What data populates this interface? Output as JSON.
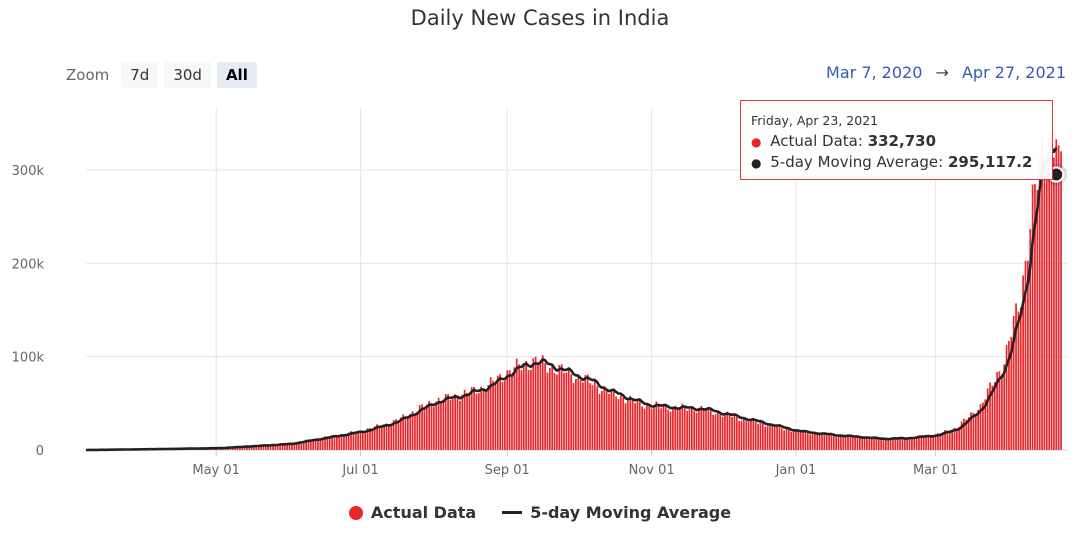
{
  "title": "Daily New Cases in India",
  "zoom": {
    "label": "Zoom",
    "buttons": [
      "7d",
      "30d",
      "All"
    ],
    "active": "All"
  },
  "range": {
    "from": "Mar 7, 2020",
    "arrow": "→",
    "to": "Apr 27, 2021"
  },
  "tooltip": {
    "date": "Friday, Apr 23, 2021",
    "actual_label": "Actual Data:",
    "actual_value": "332,730",
    "avg_label": "5-day Moving Average:",
    "avg_value": "295,117.2"
  },
  "legend": {
    "actual": "Actual Data",
    "average": "5-day Moving Average"
  },
  "colors": {
    "bar": "#e8262b",
    "line": "#222222",
    "accent": "#335cad"
  },
  "chart_data": {
    "type": "bar",
    "title": "Daily New Cases in India",
    "x_range": [
      "2020-03-07",
      "2021-04-27"
    ],
    "ylim": [
      0,
      360000
    ],
    "y_ticks": [
      0,
      100000,
      200000,
      300000
    ],
    "y_tick_labels": [
      "0",
      "100k",
      "200k",
      "300k"
    ],
    "x_tick_labels": [
      "May 01",
      "Jul 01",
      "Sep 01",
      "Nov 01",
      "Jan 01",
      "Mar 01"
    ],
    "x_tick_days": [
      55,
      116,
      178,
      239,
      300,
      359
    ],
    "series": [
      {
        "name": "Actual Data",
        "style": "bars",
        "anchors_day": [
          0,
          30,
          55,
          85,
          116,
          130,
          147,
          160,
          170,
          178,
          185,
          190,
          200,
          213,
          220,
          235,
          245,
          260,
          275,
          300,
          315,
          335,
          345,
          359,
          368,
          378,
          388,
          395,
          400,
          405,
          410,
          412
        ],
        "anchors_value": [
          50,
          1000,
          2000,
          6500,
          20000,
          30000,
          52000,
          60000,
          69000,
          83000,
          92000,
          95000,
          86000,
          73000,
          63000,
          49000,
          46000,
          44000,
          35000,
          20000,
          16000,
          12000,
          12500,
          16000,
          24000,
          47000,
          95000,
          165000,
          260000,
          330000,
          332730,
          320000
        ]
      },
      {
        "name": "5-day Moving Average",
        "style": "line"
      }
    ],
    "highlight": {
      "date": "2021-04-23",
      "actual": 332730,
      "average": 295117.2
    }
  }
}
